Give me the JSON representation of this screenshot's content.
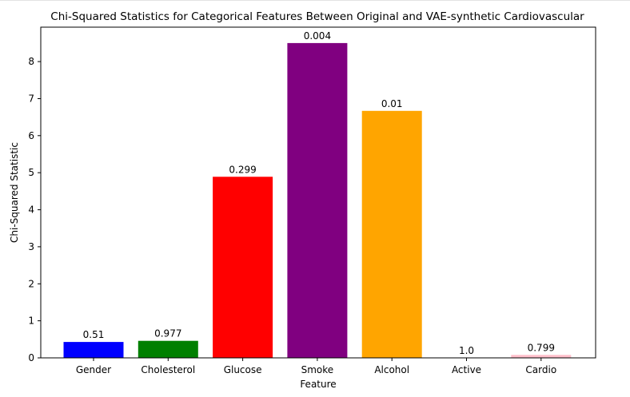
{
  "chart_data": {
    "type": "bar",
    "title": "Chi-Squared Statistics for Categorical Features Between Original and VAE-synthetic Cardiovascular",
    "xlabel": "Feature",
    "ylabel": "Chi-Squared Statistic",
    "categories": [
      "Gender",
      "Cholesterol",
      "Glucose",
      "Smoke",
      "Alcohol",
      "Active",
      "Cardio"
    ],
    "values": [
      0.43,
      0.46,
      4.89,
      8.5,
      6.67,
      0.0,
      0.08
    ],
    "bar_labels": [
      "0.51",
      "0.977",
      "0.299",
      "0.004",
      "0.01",
      "1.0",
      "0.799"
    ],
    "colors": [
      "#0000ff",
      "#008000",
      "#ff0000",
      "#800080",
      "#ffa500",
      "#ffffff",
      "#ffc0cb"
    ],
    "ylim": [
      0,
      8.93
    ],
    "yticks": [
      "0",
      "1",
      "2",
      "3",
      "4",
      "5",
      "6",
      "7",
      "8"
    ],
    "grid": false,
    "legend": "none"
  }
}
